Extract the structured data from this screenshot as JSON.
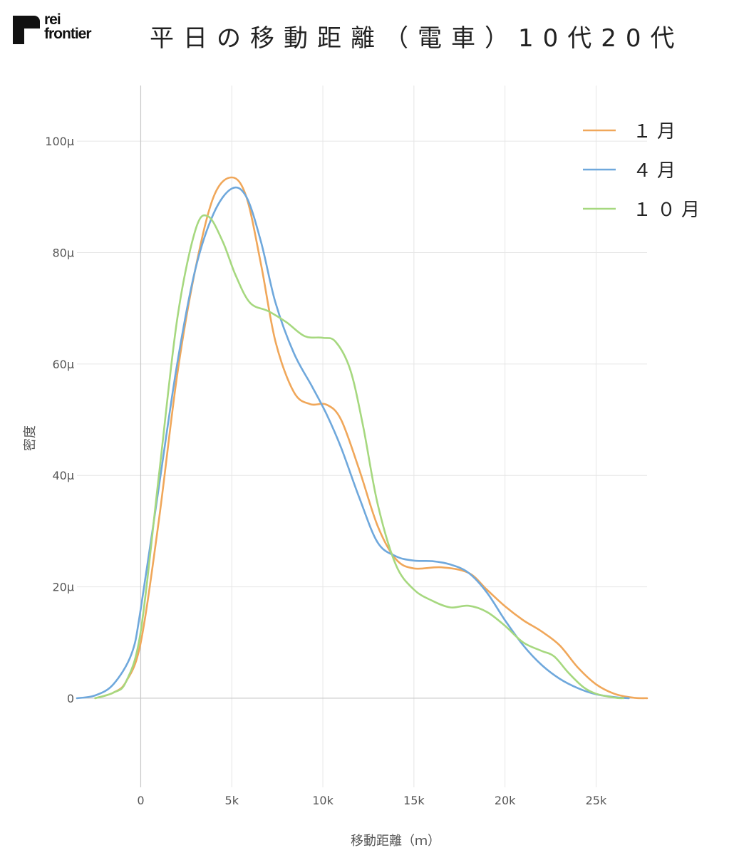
{
  "brand": {
    "line1": "rei",
    "line2": "frontier"
  },
  "chart_data": {
    "type": "line",
    "title": "平日の移動距離（電車）10代20代",
    "xlabel": "移動距離（ｍ）",
    "ylabel": "密度",
    "xlim": [
      -3500,
      27800
    ],
    "ylim": [
      -16,
      110
    ],
    "x_ticks": [
      {
        "value": 0,
        "label": "0"
      },
      {
        "value": 5000,
        "label": "5k"
      },
      {
        "value": 10000,
        "label": "10k"
      },
      {
        "value": 15000,
        "label": "15k"
      },
      {
        "value": 20000,
        "label": "20k"
      },
      {
        "value": 25000,
        "label": "25k"
      }
    ],
    "y_ticks": [
      {
        "value": 0,
        "label": "0"
      },
      {
        "value": 20,
        "label": "20µ"
      },
      {
        "value": 40,
        "label": "40µ"
      },
      {
        "value": 60,
        "label": "60µ"
      },
      {
        "value": 80,
        "label": "80µ"
      },
      {
        "value": 100,
        "label": "100µ"
      }
    ],
    "grid": true,
    "legend_position": "top-right",
    "series": [
      {
        "name": "１月",
        "color": "#f0a75a",
        "points": [
          [
            -2500,
            0
          ],
          [
            -1500,
            1
          ],
          [
            -800,
            3
          ],
          [
            0,
            10
          ],
          [
            1000,
            32
          ],
          [
            2000,
            58
          ],
          [
            3000,
            77
          ],
          [
            4000,
            90
          ],
          [
            5000,
            93.5
          ],
          [
            5800,
            90
          ],
          [
            6600,
            78
          ],
          [
            7400,
            64
          ],
          [
            8400,
            55
          ],
          [
            9300,
            52.8
          ],
          [
            10200,
            52.7
          ],
          [
            11000,
            50
          ],
          [
            12000,
            41
          ],
          [
            13000,
            31
          ],
          [
            14000,
            25
          ],
          [
            15000,
            23.3
          ],
          [
            16500,
            23.5
          ],
          [
            18000,
            22.5
          ],
          [
            19000,
            19.5
          ],
          [
            20000,
            16.5
          ],
          [
            21000,
            14
          ],
          [
            22000,
            12
          ],
          [
            23000,
            9.5
          ],
          [
            24000,
            5.5
          ],
          [
            25000,
            2.5
          ],
          [
            26000,
            0.8
          ],
          [
            27000,
            0.1
          ],
          [
            27800,
            0
          ]
        ]
      },
      {
        "name": "４月",
        "color": "#6fa8dc",
        "points": [
          [
            -3500,
            0
          ],
          [
            -2500,
            0.5
          ],
          [
            -1500,
            2.5
          ],
          [
            -500,
            8
          ],
          [
            0,
            16
          ],
          [
            1000,
            38
          ],
          [
            2000,
            60
          ],
          [
            3000,
            77
          ],
          [
            4000,
            87
          ],
          [
            5000,
            91.5
          ],
          [
            5800,
            90
          ],
          [
            6600,
            82
          ],
          [
            7400,
            71
          ],
          [
            8400,
            62
          ],
          [
            9400,
            56
          ],
          [
            10200,
            51
          ],
          [
            11000,
            45
          ],
          [
            12000,
            36
          ],
          [
            13000,
            28
          ],
          [
            14000,
            25.5
          ],
          [
            15000,
            24.7
          ],
          [
            16000,
            24.6
          ],
          [
            17000,
            24
          ],
          [
            18000,
            22.5
          ],
          [
            19000,
            19
          ],
          [
            20000,
            14
          ],
          [
            21000,
            9.5
          ],
          [
            22000,
            6
          ],
          [
            23000,
            3.5
          ],
          [
            24000,
            1.8
          ],
          [
            25000,
            0.7
          ],
          [
            26000,
            0.2
          ],
          [
            26800,
            0
          ]
        ]
      },
      {
        "name": "１０月",
        "color": "#a6d87f",
        "points": [
          [
            -2500,
            0
          ],
          [
            -1500,
            1
          ],
          [
            -800,
            3
          ],
          [
            0,
            12
          ],
          [
            1000,
            40
          ],
          [
            2000,
            68
          ],
          [
            3000,
            84
          ],
          [
            3700,
            86.5
          ],
          [
            4500,
            82
          ],
          [
            5200,
            76
          ],
          [
            6000,
            71
          ],
          [
            7000,
            69.5
          ],
          [
            8000,
            67.5
          ],
          [
            9000,
            65
          ],
          [
            10000,
            64.7
          ],
          [
            10700,
            64
          ],
          [
            11500,
            59
          ],
          [
            12200,
            49
          ],
          [
            13000,
            35
          ],
          [
            14000,
            24
          ],
          [
            15000,
            19.5
          ],
          [
            16000,
            17.5
          ],
          [
            17000,
            16.3
          ],
          [
            18000,
            16.6
          ],
          [
            19000,
            15.5
          ],
          [
            20000,
            13
          ],
          [
            21000,
            10
          ],
          [
            22000,
            8.5
          ],
          [
            22700,
            7.5
          ],
          [
            23500,
            4.5
          ],
          [
            24300,
            2
          ],
          [
            25000,
            0.8
          ],
          [
            26000,
            0.1
          ],
          [
            26500,
            0
          ]
        ]
      }
    ]
  }
}
